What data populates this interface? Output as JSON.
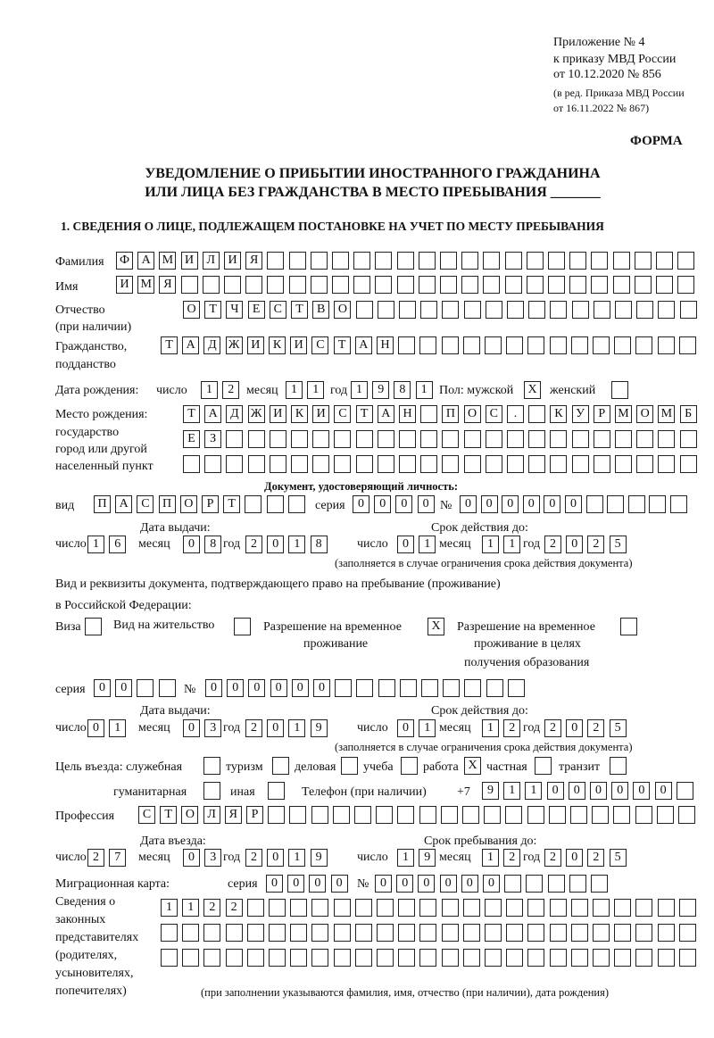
{
  "header": {
    "appendix": [
      "Приложение № 4",
      "к приказу МВД России",
      "от 10.12.2020 № 856"
    ],
    "edition": [
      "(в ред. Приказа МВД России",
      "от 16.11.2022 № 867)"
    ],
    "form_label": "ФОРМА"
  },
  "title": [
    "УВЕДОМЛЕНИЕ О ПРИБЫТИИ ИНОСТРАННОГО ГРАЖДАНИНА",
    "ИЛИ ЛИЦА БЕЗ ГРАЖДАНСТВА В МЕСТО ПРЕБЫВАНИЯ _______"
  ],
  "section1": "1. СВЕДЕНИЯ О ЛИЦЕ, ПОДЛЕЖАЩЕМ ПОСТАНОВКЕ НА УЧЕТ ПО МЕСТУ ПРЕБЫВАНИЯ",
  "labels": {
    "surname": "Фамилия",
    "name": "Имя",
    "patronymic": "Отчество",
    "patronymic2": "(при наличии)",
    "citizenship": "Гражданство,",
    "citizenship2": "подданство",
    "birth_date": "Дата рождения:",
    "day": "число",
    "month": "месяц",
    "year": "год",
    "sex": "Пол: мужской",
    "female": "женский",
    "birthplace": [
      "Место рождения:",
      "государство",
      "город или другой",
      "населенный пункт"
    ],
    "id_doc": "Документ, удостоверяющий личность:",
    "kind": "вид",
    "series": "серия",
    "number": "№",
    "issue_date": "Дата выдачи:",
    "valid_until": "Срок действия до:",
    "valid_note": "(заполняется в случае ограничения срока действия документа)",
    "stay_doc": [
      "Вид и реквизиты документа, подтверждающего право на пребывание (проживание)",
      "в Российской Федерации:"
    ],
    "visa": "Виза",
    "residence": "Вид на жительство",
    "temp_permit": [
      "Разрешение на временное",
      "проживание"
    ],
    "temp_permit_edu": [
      "Разрешение на временное",
      "проживание в целях",
      "получения образования"
    ],
    "purpose": "Цель въезда: служебная",
    "tourism": "туризм",
    "business": "деловая",
    "study": "учеба",
    "work": "работа",
    "private": "частная",
    "transit": "транзит",
    "humanitarian": "гуманитарная",
    "other": "иная",
    "phone": "Телефон (при наличии)",
    "phone_prefix": "+7",
    "profession": "Профессия",
    "entry_date": "Дата въезда:",
    "stay_until": "Срок пребывания до:",
    "migration_card": "Миграционная карта:",
    "representatives": [
      "Сведения о",
      "законных",
      "представителях",
      "(родителях,",
      "усыновителях,",
      "попечителях)"
    ],
    "rep_note": "(при заполнении указываются фамилия, имя, отчество (при наличии), дата рождения)"
  },
  "fields": {
    "surname": [
      "Ф",
      "А",
      "М",
      "И",
      "Л",
      "И",
      "Я",
      "",
      "",
      "",
      "",
      "",
      "",
      "",
      "",
      "",
      "",
      "",
      "",
      "",
      "",
      "",
      "",
      "",
      "",
      "",
      ""
    ],
    "name": [
      "И",
      "М",
      "Я",
      "",
      "",
      "",
      "",
      "",
      "",
      "",
      "",
      "",
      "",
      "",
      "",
      "",
      "",
      "",
      "",
      "",
      "",
      "",
      "",
      "",
      "",
      "",
      ""
    ],
    "patronymic": [
      "О",
      "Т",
      "Ч",
      "Е",
      "С",
      "Т",
      "В",
      "О",
      "",
      "",
      "",
      "",
      "",
      "",
      "",
      "",
      "",
      "",
      "",
      "",
      "",
      "",
      "",
      ""
    ],
    "citizenship": [
      "Т",
      "А",
      "Д",
      "Ж",
      "И",
      "К",
      "И",
      "С",
      "Т",
      "А",
      "Н",
      "",
      "",
      "",
      "",
      "",
      "",
      "",
      "",
      "",
      "",
      "",
      "",
      "",
      ""
    ],
    "birth_day": [
      "1",
      "2"
    ],
    "birth_month": [
      "1",
      "1"
    ],
    "birth_year": [
      "1",
      "9",
      "8",
      "1"
    ],
    "male": "X",
    "female": "",
    "birthplace1": [
      "Т",
      "А",
      "Д",
      "Ж",
      "И",
      "К",
      "И",
      "С",
      "Т",
      "А",
      "Н",
      "",
      "П",
      "О",
      "С",
      ".",
      "",
      "К",
      "У",
      "Р",
      "М",
      "О",
      "М",
      "Б"
    ],
    "birthplace2": [
      "Е",
      "З",
      "",
      "",
      "",
      "",
      "",
      "",
      "",
      "",
      "",
      "",
      "",
      "",
      "",
      "",
      "",
      "",
      "",
      "",
      "",
      "",
      "",
      ""
    ],
    "birthplace3": [
      "",
      "",
      "",
      "",
      "",
      "",
      "",
      "",
      "",
      "",
      "",
      "",
      "",
      "",
      "",
      "",
      "",
      "",
      "",
      "",
      "",
      "",
      "",
      ""
    ],
    "doc_kind": [
      "П",
      "А",
      "С",
      "П",
      "О",
      "Р",
      "Т",
      "",
      "",
      ""
    ],
    "doc_series": [
      "0",
      "0",
      "0",
      "0"
    ],
    "doc_number": [
      "0",
      "0",
      "0",
      "0",
      "0",
      "0",
      "",
      "",
      "",
      "",
      ""
    ],
    "doc_issue_day": [
      "1",
      "6"
    ],
    "doc_issue_month": [
      "0",
      "8"
    ],
    "doc_issue_year": [
      "2",
      "0",
      "1",
      "8"
    ],
    "doc_valid_day": [
      "0",
      "1"
    ],
    "doc_valid_month": [
      "1",
      "1"
    ],
    "doc_valid_year": [
      "2",
      "0",
      "2",
      "5"
    ],
    "visa": "",
    "residence": "",
    "temp_permit": "X",
    "temp_permit_edu": "",
    "stay_series": [
      "0",
      "0",
      "",
      ""
    ],
    "stay_number": [
      "0",
      "0",
      "0",
      "0",
      "0",
      "0",
      "",
      "",
      "",
      "",
      "",
      "",
      "",
      "",
      ""
    ],
    "stay_issue_day": [
      "0",
      "1"
    ],
    "stay_issue_month": [
      "0",
      "3"
    ],
    "stay_issue_year": [
      "2",
      "0",
      "1",
      "9"
    ],
    "stay_valid_day": [
      "0",
      "1"
    ],
    "stay_valid_month": [
      "1",
      "2"
    ],
    "stay_valid_year": [
      "2",
      "0",
      "2",
      "5"
    ],
    "purpose_official": "",
    "purpose_tourism": "",
    "purpose_business": "",
    "purpose_study": "",
    "purpose_work": "X",
    "purpose_private": "",
    "purpose_transit": "",
    "purpose_humanitarian": "",
    "purpose_other": "",
    "phone": [
      "9",
      "1",
      "1",
      "0",
      "0",
      "0",
      "0",
      "0",
      "0",
      ""
    ],
    "profession": [
      "С",
      "Т",
      "О",
      "Л",
      "Я",
      "Р",
      "",
      "",
      "",
      "",
      "",
      "",
      "",
      "",
      "",
      "",
      "",
      "",
      "",
      "",
      "",
      "",
      "",
      "",
      "",
      ""
    ],
    "entry_day": [
      "2",
      "7"
    ],
    "entry_month": [
      "0",
      "3"
    ],
    "entry_year": [
      "2",
      "0",
      "1",
      "9"
    ],
    "stay_until_day": [
      "1",
      "9"
    ],
    "stay_until_month": [
      "1",
      "2"
    ],
    "stay_until_year": [
      "2",
      "0",
      "2",
      "5"
    ],
    "mig_series": [
      "0",
      "0",
      "0",
      "0"
    ],
    "mig_number": [
      "0",
      "0",
      "0",
      "0",
      "0",
      "0",
      "",
      "",
      "",
      "",
      ""
    ],
    "rep1": [
      "1",
      "1",
      "2",
      "2",
      "",
      "",
      "",
      "",
      "",
      "",
      "",
      "",
      "",
      "",
      "",
      "",
      "",
      "",
      "",
      "",
      "",
      "",
      "",
      "",
      ""
    ],
    "rep2": [
      "",
      "",
      "",
      "",
      "",
      "",
      "",
      "",
      "",
      "",
      "",
      "",
      "",
      "",
      "",
      "",
      "",
      "",
      "",
      "",
      "",
      "",
      "",
      "",
      ""
    ],
    "rep3": [
      "",
      "",
      "",
      "",
      "",
      "",
      "",
      "",
      "",
      "",
      "",
      "",
      "",
      "",
      "",
      "",
      "",
      "",
      "",
      "",
      "",
      "",
      "",
      "",
      ""
    ]
  }
}
